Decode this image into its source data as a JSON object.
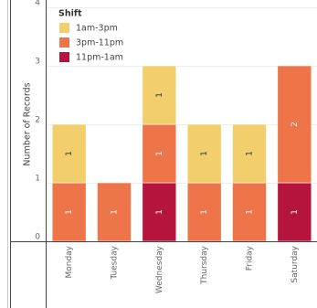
{
  "chart_data": {
    "type": "stacked_bar",
    "y_label": "Number of Records",
    "legend_title": "Shift",
    "legend_position": "top-left",
    "categories": [
      "Monday",
      "Tuesday",
      "Wednesday",
      "Thursday",
      "Friday",
      "Saturday"
    ],
    "series": [
      {
        "name": "11pm-1am",
        "color": "#b5143c",
        "values": [
          0,
          0,
          1,
          0,
          0,
          1
        ]
      },
      {
        "name": "3pm-11pm",
        "color": "#ee744a",
        "values": [
          1,
          1,
          1,
          1,
          1,
          2
        ]
      },
      {
        "name": "1am-3pm",
        "color": "#f2cf6c",
        "values": [
          1,
          0,
          1,
          1,
          1,
          0
        ]
      }
    ],
    "legend_order": [
      2,
      1,
      0
    ],
    "ylim": [
      0,
      4
    ],
    "yticks": [
      0,
      1,
      2,
      3,
      4
    ],
    "grid": true
  }
}
